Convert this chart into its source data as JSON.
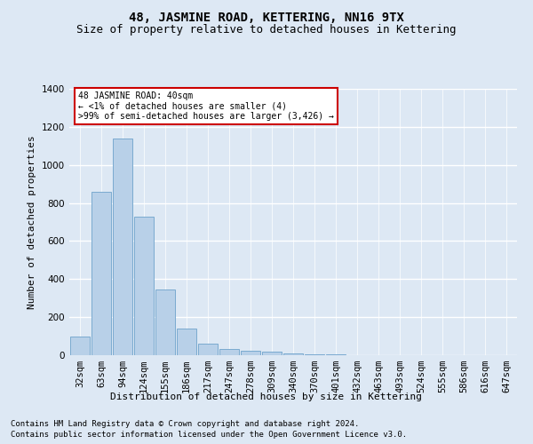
{
  "title": "48, JASMINE ROAD, KETTERING, NN16 9TX",
  "subtitle": "Size of property relative to detached houses in Kettering",
  "xlabel": "Distribution of detached houses by size in Kettering",
  "ylabel": "Number of detached properties",
  "categories": [
    "32sqm",
    "63sqm",
    "94sqm",
    "124sqm",
    "155sqm",
    "186sqm",
    "217sqm",
    "247sqm",
    "278sqm",
    "309sqm",
    "340sqm",
    "370sqm",
    "401sqm",
    "432sqm",
    "463sqm",
    "493sqm",
    "524sqm",
    "555sqm",
    "586sqm",
    "616sqm",
    "647sqm"
  ],
  "values": [
    100,
    860,
    1140,
    730,
    345,
    140,
    60,
    35,
    25,
    20,
    10,
    5,
    3,
    2,
    1,
    1,
    0,
    0,
    0,
    0,
    0
  ],
  "bar_color": "#b8d0e8",
  "bar_edge_color": "#7aaad0",
  "ylim": [
    0,
    1400
  ],
  "yticks": [
    0,
    200,
    400,
    600,
    800,
    1000,
    1200,
    1400
  ],
  "annotation_text": "48 JASMINE ROAD: 40sqm\n← <1% of detached houses are smaller (4)\n>99% of semi-detached houses are larger (3,426) →",
  "annotation_box_color": "#ffffff",
  "annotation_box_edge_color": "#cc0000",
  "footer1": "Contains HM Land Registry data © Crown copyright and database right 2024.",
  "footer2": "Contains public sector information licensed under the Open Government Licence v3.0.",
  "bg_color": "#dde8f4",
  "plot_bg_color": "#dde8f4",
  "grid_color": "#ffffff",
  "title_fontsize": 10,
  "subtitle_fontsize": 9,
  "label_fontsize": 8,
  "tick_fontsize": 7.5,
  "footer_fontsize": 6.5
}
